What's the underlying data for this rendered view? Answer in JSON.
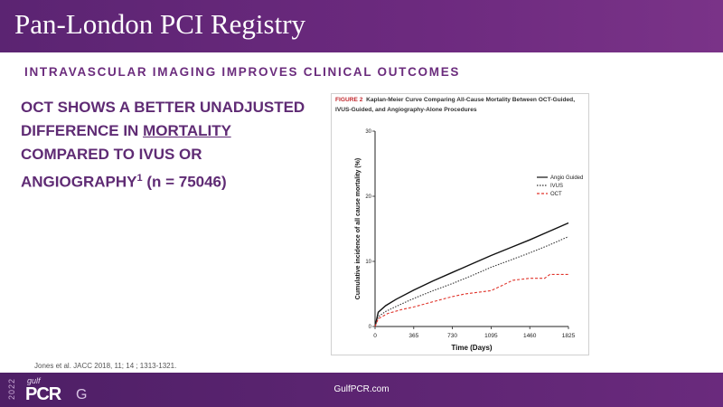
{
  "header": {
    "title": "Pan-London PCI Registry"
  },
  "section": {
    "title": "INTRAVASCULAR IMAGING IMPROVES CLINICAL OUTCOMES"
  },
  "claim": {
    "part1": "OCT SHOWS A BETTER UNADJUSTED DIFFERENCE IN ",
    "underlined": "MORTALITY",
    "part2": " COMPARED TO IVUS OR ANGIOGRAPHY",
    "superscript": "1",
    "part3": " (n = 75046)"
  },
  "figure": {
    "label": "FIGURE 2",
    "caption": "Kaplan-Meier Curve Comparing All-Cause Mortality Between OCT-Guided, IVUS-Guided, and Angiography-Alone Procedures"
  },
  "citation": "Jones et al. JACC 2018, 11; 14 ; 1313-1321.",
  "footer": {
    "url": "GulfPCR.com",
    "logo_year": "2022",
    "logo_small": "gulf",
    "logo_main": "PCR",
    "logo_suffix": "G"
  },
  "colors": {
    "banner": "#6d2a7f",
    "accent": "#5f2b74",
    "oct": "#e0342b"
  },
  "chart_data": {
    "type": "line",
    "title": "",
    "xlabel": "Time (Days)",
    "ylabel": "Cumulative incidence of all cause mortality (%)",
    "xlim": [
      0,
      1825
    ],
    "ylim": [
      0,
      30
    ],
    "xticks": [
      "0",
      "365",
      "730",
      "1095",
      "1460",
      "1825"
    ],
    "yticks": [
      "0",
      "10",
      "20",
      "30"
    ],
    "legend_position": "right",
    "series": [
      {
        "name": "Angio Guided",
        "style": "solid",
        "color": "#111111",
        "x": [
          0,
          30,
          100,
          200,
          365,
          547,
          730,
          912,
          1095,
          1277,
          1460,
          1642,
          1825
        ],
        "y": [
          0,
          2.2,
          3.2,
          4.2,
          5.6,
          7.0,
          8.3,
          9.6,
          10.9,
          12.1,
          13.3,
          14.6,
          15.9
        ]
      },
      {
        "name": "IVUS",
        "style": "dotted",
        "color": "#333333",
        "x": [
          0,
          30,
          100,
          200,
          365,
          547,
          730,
          912,
          1095,
          1277,
          1460,
          1642,
          1825
        ],
        "y": [
          0,
          1.5,
          2.3,
          3.1,
          4.3,
          5.5,
          6.6,
          7.8,
          9.1,
          10.2,
          11.3,
          12.5,
          13.8
        ]
      },
      {
        "name": "OCT",
        "style": "dashed",
        "color": "#e0342b",
        "x": [
          0,
          30,
          120,
          250,
          365,
          500,
          730,
          850,
          1095,
          1200,
          1300,
          1460,
          1600,
          1650,
          1825
        ],
        "y": [
          0,
          1.2,
          2.0,
          2.6,
          3.0,
          3.6,
          4.6,
          5.0,
          5.5,
          6.3,
          7.1,
          7.4,
          7.4,
          8.0,
          8.0
        ]
      }
    ]
  }
}
